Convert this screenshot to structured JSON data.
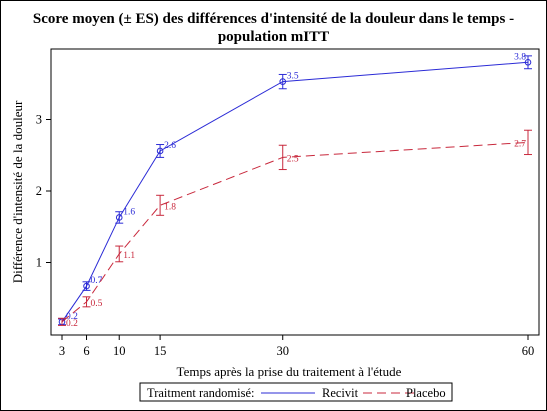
{
  "chart_data": {
    "type": "line",
    "title_line1": "Score moyen (± ES) des différences d'intensité de la douleur dans le temps -",
    "title_line2": "population mITT",
    "xlabel": "Temps après la prise du traitement à l'étude",
    "ylabel": "Différence d'intensité de la douleur",
    "x_ticks": [
      3,
      6,
      10,
      15,
      30,
      60
    ],
    "y_ticks": [
      1,
      2,
      3
    ],
    "xlim": [
      3,
      60
    ],
    "ylim": [
      0,
      4
    ],
    "legend_title": "Traitment randomisé:",
    "legend_position": "bottom",
    "series": [
      {
        "name": "Recivit",
        "color": "#2b2bd6",
        "style": "solid",
        "marker": "circle",
        "x": [
          3,
          6,
          10,
          15,
          30,
          60
        ],
        "values": [
          0.17,
          0.67,
          1.63,
          2.56,
          3.53,
          3.8
        ],
        "se": [
          0.04,
          0.06,
          0.08,
          0.09,
          0.1,
          0.09
        ],
        "labels": [
          "0.2",
          "0.7",
          "1.6",
          "2.6",
          "3.5",
          "3.8"
        ]
      },
      {
        "name": "Placebo",
        "color": "#c8283c",
        "style": "dashed",
        "marker": "none",
        "x": [
          3,
          6,
          10,
          15,
          30,
          60
        ],
        "values": [
          0.17,
          0.45,
          1.12,
          1.8,
          2.47,
          2.68
        ],
        "se": [
          0.05,
          0.07,
          0.11,
          0.14,
          0.17,
          0.17
        ],
        "labels": [
          "0.2",
          "0.5",
          "1.1",
          "1.8",
          "2.5",
          "2.7"
        ]
      }
    ]
  }
}
